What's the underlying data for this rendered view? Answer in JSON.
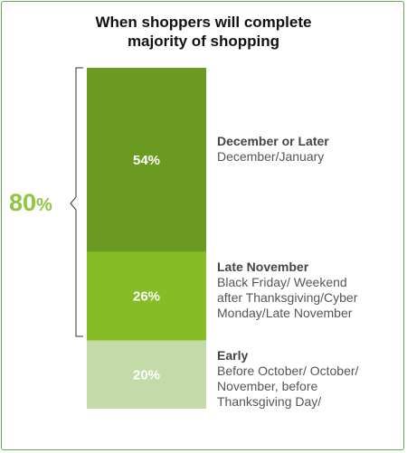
{
  "title_lines": [
    "When shoppers will complete",
    "majority of shopping"
  ],
  "total": {
    "value": "80",
    "unit": "%"
  },
  "colors": {
    "accent": "#8dc63f",
    "frame": "#6aa84f"
  },
  "chart_data": {
    "type": "bar",
    "stacked": true,
    "title": "When shoppers will complete majority of shopping",
    "categories": [
      "December or Later",
      "Late November",
      "Early"
    ],
    "values": [
      54,
      26,
      20
    ],
    "labels": [
      "54%",
      "26%",
      "20%"
    ],
    "colors": [
      "#6a9a1f",
      "#86bc25",
      "#c2dba8"
    ],
    "legend": [
      {
        "title": "December or Later",
        "description": "December/January"
      },
      {
        "title": "Late November",
        "description": "Black Friday/ Weekend\nafter Thanksgiving/Cyber\nMonday/Late November"
      },
      {
        "title": "Early",
        "description": "Before October/ October/\nNovember, before\nThanksgiving Day/"
      }
    ],
    "bracket": {
      "covers": [
        "December or Later",
        "Late November"
      ],
      "label": "80%"
    },
    "ylim": [
      0,
      100
    ],
    "legend_placement": "right",
    "grid": false
  }
}
